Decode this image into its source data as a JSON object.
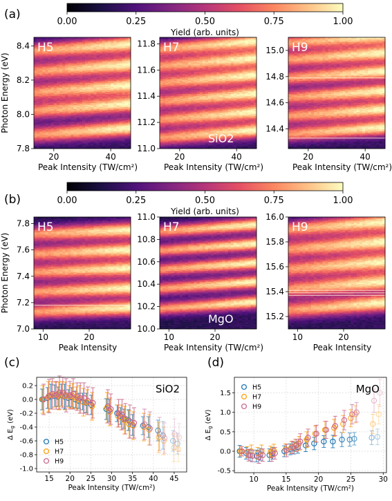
{
  "colors": {
    "magma": [
      "#000004",
      "#1c1044",
      "#4f127b",
      "#812581",
      "#b5367a",
      "#e55064",
      "#fb8761",
      "#fec287",
      "#fcfdbf"
    ],
    "H5": "#1f77b4",
    "H7": "#ff9f0e",
    "H9": "#c9688e",
    "grid": "#d9d9d9",
    "axis": "#111111"
  },
  "panels": {
    "a_label": "(a)",
    "b_label": "(b)",
    "c_label": "(c)",
    "d_label": "(d)"
  },
  "chart_data": [
    {
      "id": "a-colorbar",
      "type": "heatmap",
      "ticks": [
        "0.00",
        "0.25",
        "0.50",
        "0.75",
        "1.00"
      ],
      "label": "Yield (arb. units)",
      "range": [
        0,
        1
      ]
    },
    {
      "id": "a-H5",
      "type": "heatmap",
      "harmonic": "H5",
      "material_label": "",
      "xlim": [
        13,
        47
      ],
      "ylim": [
        7.8,
        8.45
      ],
      "xticks": [
        "20",
        "40"
      ],
      "xtick_values": [
        20,
        40
      ],
      "yticks": [
        "7.8",
        "8.0",
        "8.2",
        "8.4"
      ],
      "ytick_values": [
        7.8,
        8.0,
        8.2,
        8.4
      ],
      "xlabel": "Peak Intensity (TW/cm²)",
      "ylabel": "Photon Energy (eV)",
      "band_centers": [
        7.88,
        8.02,
        8.13,
        8.25,
        8.37
      ],
      "band_width": 0.05,
      "shift_total": 0.04
    },
    {
      "id": "a-H7",
      "type": "heatmap",
      "harmonic": "H7",
      "material_label": "SiO2",
      "xlim": [
        13,
        47
      ],
      "ylim": [
        11.0,
        11.85
      ],
      "xticks": [
        "20",
        "40"
      ],
      "xtick_values": [
        20,
        40
      ],
      "yticks": [
        "11.0",
        "11.2",
        "11.4",
        "11.6",
        "11.8"
      ],
      "ytick_values": [
        11.0,
        11.2,
        11.4,
        11.6,
        11.8
      ],
      "xlabel": "Peak Intensity (TW/cm²)",
      "ylabel": "",
      "band_centers": [
        11.08,
        11.22,
        11.36,
        11.5,
        11.63,
        11.76
      ],
      "band_width": 0.06,
      "shift_total": 0.06
    },
    {
      "id": "a-H9",
      "type": "heatmap",
      "harmonic": "H9",
      "material_label": "",
      "xlim": [
        13,
        47
      ],
      "ylim": [
        14.25,
        15.1
      ],
      "xticks": [
        "20",
        "40"
      ],
      "xtick_values": [
        20,
        40
      ],
      "yticks": [
        "14.4",
        "14.6",
        "14.8",
        "15.0"
      ],
      "ytick_values": [
        14.4,
        14.6,
        14.8,
        15.0
      ],
      "xlabel": "Peak Intensity (TW/cm²)",
      "ylabel": "",
      "band_centers": [
        14.36,
        14.5,
        14.64,
        14.79,
        14.93,
        15.06
      ],
      "band_width": 0.06,
      "shift_total": 0.05
    },
    {
      "id": "b-colorbar",
      "type": "heatmap",
      "ticks": [
        "0.00",
        "0.25",
        "0.50",
        "0.75",
        "1.00"
      ],
      "label": "Yield (arb. units)",
      "range": [
        0,
        1
      ]
    },
    {
      "id": "b-H5",
      "type": "heatmap",
      "harmonic": "H5",
      "material_label": "",
      "xlim": [
        8,
        29
      ],
      "ylim": [
        7.0,
        7.85
      ],
      "xticks": [
        "10",
        "20"
      ],
      "xtick_values": [
        10,
        20
      ],
      "yticks": [
        "7.0",
        "7.2",
        "7.4",
        "7.6",
        "7.8"
      ],
      "ytick_values": [
        7.0,
        7.2,
        7.4,
        7.6,
        7.8
      ],
      "xlabel": "Peak Intensity",
      "ylabel": "Photon Energy (eV)",
      "band_centers": [
        7.13,
        7.28,
        7.43,
        7.57,
        7.72
      ],
      "band_width": 0.06,
      "shift_total": 0.03
    },
    {
      "id": "b-H7",
      "type": "heatmap",
      "harmonic": "H7",
      "material_label": "MgO",
      "xlim": [
        8,
        29
      ],
      "ylim": [
        10.0,
        11.0
      ],
      "xticks": [
        "10",
        "20"
      ],
      "xtick_values": [
        10,
        20
      ],
      "yticks": [
        "10.0",
        "10.2",
        "10.4",
        "10.6",
        "10.8",
        "11.0"
      ],
      "ytick_values": [
        10.0,
        10.2,
        10.4,
        10.6,
        10.8,
        11.0
      ],
      "xlabel": "Peak Intensity (TW/cm²)",
      "ylabel": "",
      "band_centers": [
        10.18,
        10.36,
        10.53,
        10.7,
        10.87
      ],
      "band_width": 0.06,
      "shift_total": 0.06
    },
    {
      "id": "b-H9",
      "type": "heatmap",
      "harmonic": "H9",
      "material_label": "",
      "xlim": [
        8,
        29
      ],
      "ylim": [
        15.1,
        16.0
      ],
      "xticks": [
        "10",
        "20"
      ],
      "xtick_values": [
        10,
        20
      ],
      "yticks": [
        "15.2",
        "15.4",
        "15.6",
        "15.8",
        "16.0"
      ],
      "ytick_values": [
        15.2,
        15.4,
        15.6,
        15.8,
        16.0
      ],
      "xlabel": "Peak Intensity",
      "ylabel": "",
      "band_centers": [
        15.25,
        15.42,
        15.58,
        15.74,
        15.9
      ],
      "band_width": 0.07,
      "shift_total": 0.06
    },
    {
      "id": "c-scatter",
      "type": "scatter",
      "material_label": "SiO2",
      "xlim": [
        12,
        48
      ],
      "ylim": [
        -1.05,
        0.32
      ],
      "xticks": [
        "15",
        "20",
        "25",
        "30",
        "35",
        "40",
        "45"
      ],
      "xtick_values": [
        15,
        20,
        25,
        30,
        35,
        40,
        45
      ],
      "yticks": [
        "0.2",
        "0.0",
        "-0.2",
        "-0.4",
        "-0.6",
        "-0.8",
        "-1.0"
      ],
      "ytick_values": [
        0.2,
        0.0,
        -0.2,
        -0.4,
        -0.6,
        -0.8,
        -1.0
      ],
      "xlabel": "Peak Intensity (TW/cm²)",
      "ylabel": "Δ E",
      "ylabel_sub": "g",
      "ylabel_unit": " (eV)",
      "legend": [
        "H5",
        "H7",
        "H9"
      ],
      "series": [
        {
          "name": "H5",
          "x": [
            13.5,
            14.8,
            15.6,
            16.5,
            17.3,
            18.1,
            18.9,
            19.8,
            20.6,
            21.5,
            22.3,
            23.2,
            24.1,
            25.3,
            28.9,
            29.6,
            31.5,
            32.3,
            33.1,
            34.2,
            35.2,
            37.7,
            39.0,
            41.3,
            42.5,
            44.9,
            46.0
          ],
          "y": [
            0.0,
            0.02,
            0.04,
            0.05,
            0.04,
            0.06,
            0.04,
            0.02,
            0.03,
            0.0,
            -0.02,
            -0.03,
            -0.05,
            -0.08,
            -0.14,
            -0.16,
            -0.2,
            -0.24,
            -0.28,
            -0.3,
            -0.37,
            -0.38,
            -0.4,
            -0.45,
            -0.52,
            -0.6,
            -0.64
          ],
          "err": [
            0.15,
            0.15,
            0.18,
            0.16,
            0.14,
            0.16,
            0.18,
            0.12,
            0.14,
            0.12,
            0.11,
            0.12,
            0.14,
            0.14,
            0.15,
            0.16,
            0.12,
            0.12,
            0.14,
            0.15,
            0.15,
            0.13,
            0.15,
            0.15,
            0.2,
            0.15,
            0.15
          ],
          "alpha": [
            1,
            1,
            1,
            1,
            1,
            1,
            1,
            1,
            1,
            1,
            1,
            1,
            1,
            1,
            1,
            1,
            1,
            1,
            1,
            1,
            1,
            0.85,
            0.85,
            0.7,
            0.5,
            0.35,
            0.3
          ]
        },
        {
          "name": "H7",
          "x": [
            13.5,
            14.8,
            15.6,
            16.5,
            17.3,
            18.1,
            18.9,
            19.8,
            20.6,
            21.5,
            22.3,
            23.2,
            24.1,
            25.3,
            28.9,
            29.6,
            31.5,
            32.3,
            33.1,
            34.2,
            35.2,
            37.7,
            39.0,
            41.3,
            42.5,
            44.9,
            46.0
          ],
          "y": [
            0.0,
            0.04,
            0.06,
            0.07,
            0.05,
            0.08,
            0.05,
            0.04,
            0.05,
            0.02,
            0.0,
            -0.04,
            -0.04,
            -0.1,
            -0.12,
            -0.18,
            -0.24,
            -0.26,
            -0.3,
            -0.36,
            -0.38,
            -0.4,
            -0.44,
            -0.55,
            -0.6,
            -0.7,
            -0.72
          ],
          "err": [
            0.2,
            0.22,
            0.2,
            0.18,
            0.2,
            0.18,
            0.2,
            0.16,
            0.18,
            0.16,
            0.2,
            0.2,
            0.18,
            0.2,
            0.22,
            0.2,
            0.16,
            0.18,
            0.2,
            0.2,
            0.2,
            0.2,
            0.22,
            0.22,
            0.2,
            0.2,
            0.18
          ],
          "alpha": [
            1,
            1,
            1,
            1,
            1,
            1,
            1,
            1,
            1,
            1,
            1,
            1,
            1,
            1,
            1,
            1,
            1,
            1,
            1,
            1,
            1,
            0.85,
            0.8,
            0.65,
            0.5,
            0.35,
            0.3
          ]
        },
        {
          "name": "H9",
          "x": [
            13.5,
            14.8,
            15.6,
            16.5,
            17.3,
            18.1,
            18.9,
            19.8,
            20.6,
            21.5,
            22.3,
            23.2,
            24.1,
            25.3,
            28.9,
            29.6,
            31.5,
            32.3,
            33.1,
            34.2,
            35.2,
            37.7,
            39.0,
            41.3,
            42.5,
            44.9,
            46.0
          ],
          "y": [
            0.0,
            0.05,
            0.08,
            0.06,
            0.1,
            0.1,
            0.06,
            0.06,
            0.08,
            0.04,
            0.02,
            0.02,
            -0.02,
            -0.05,
            -0.1,
            -0.14,
            -0.2,
            -0.22,
            -0.28,
            -0.32,
            -0.34,
            -0.36,
            -0.42,
            -0.5,
            -0.56,
            -0.5,
            -0.55
          ],
          "err": [
            0.22,
            0.24,
            0.22,
            0.2,
            0.24,
            0.22,
            0.24,
            0.2,
            0.22,
            0.2,
            0.22,
            0.22,
            0.2,
            0.22,
            0.24,
            0.22,
            0.2,
            0.22,
            0.22,
            0.24,
            0.22,
            0.22,
            0.24,
            0.24,
            0.22,
            0.22,
            0.2
          ],
          "alpha": [
            1,
            1,
            1,
            1,
            1,
            1,
            1,
            1,
            1,
            1,
            1,
            1,
            1,
            1,
            1,
            1,
            1,
            1,
            1,
            1,
            1,
            0.8,
            0.75,
            0.6,
            0.45,
            0.3,
            0.25
          ]
        }
      ],
      "grid": true,
      "legend_position": "bottom-left"
    },
    {
      "id": "d-scatter",
      "type": "scatter",
      "material_label": "MgO",
      "xlim": [
        7,
        30.5
      ],
      "ylim": [
        -0.55,
        1.9
      ],
      "xticks": [
        "10",
        "15",
        "20",
        "25",
        "30"
      ],
      "xtick_values": [
        10,
        15,
        20,
        25,
        30
      ],
      "yticks": [
        "1.5",
        "1.0",
        "0.5",
        "0.0",
        "-0.5"
      ],
      "ytick_values": [
        1.5,
        1.0,
        0.5,
        0.0,
        -0.5
      ],
      "xlabel": "Peak Intensity (TW/cm²)",
      "ylabel": "Δ E",
      "ylabel_sub": "g",
      "ylabel_unit": " (eV)",
      "legend": [
        "H5",
        "H7",
        "H9"
      ],
      "series": [
        {
          "name": "H5",
          "x": [
            8.0,
            9.0,
            9.6,
            10.6,
            11.2,
            12.6,
            13.1,
            14.9,
            15.8,
            16.4,
            17.0,
            18.2,
            19.5,
            21.0,
            22.4,
            23.8,
            25.0,
            25.7,
            28.4,
            29.3
          ],
          "y": [
            0.0,
            -0.05,
            -0.1,
            -0.12,
            -0.08,
            -0.1,
            -0.05,
            0.0,
            0.05,
            0.08,
            0.1,
            0.15,
            0.2,
            0.25,
            0.25,
            0.3,
            0.3,
            0.32,
            0.35,
            0.37
          ],
          "err": [
            0.15,
            0.15,
            0.15,
            0.15,
            0.15,
            0.16,
            0.15,
            0.14,
            0.14,
            0.15,
            0.15,
            0.16,
            0.16,
            0.15,
            0.16,
            0.18,
            0.17,
            0.16,
            0.18,
            0.2
          ],
          "alpha": [
            1,
            1,
            1,
            1,
            1,
            1,
            1,
            1,
            1,
            1,
            1,
            1,
            1,
            1,
            1,
            0.9,
            0.8,
            0.7,
            0.5,
            0.35
          ]
        },
        {
          "name": "H7",
          "x": [
            8.0,
            9.0,
            9.6,
            10.6,
            11.2,
            12.6,
            13.1,
            14.9,
            15.8,
            16.4,
            17.0,
            18.2,
            19.5,
            21.0,
            22.4,
            23.8,
            25.0,
            25.7,
            28.4,
            29.3
          ],
          "y": [
            0.0,
            -0.02,
            0.0,
            -0.05,
            0.0,
            -0.02,
            0.02,
            0.05,
            0.1,
            0.15,
            0.2,
            0.3,
            0.45,
            0.55,
            0.6,
            0.7,
            0.85,
            0.95,
            0.7,
            0.95
          ],
          "err": [
            0.12,
            0.14,
            0.16,
            0.15,
            0.16,
            0.15,
            0.16,
            0.14,
            0.15,
            0.16,
            0.18,
            0.2,
            0.2,
            0.22,
            0.22,
            0.22,
            0.22,
            0.22,
            0.25,
            0.25
          ],
          "alpha": [
            1,
            1,
            1,
            1,
            1,
            1,
            1,
            1,
            1,
            1,
            1,
            1,
            1,
            1,
            1,
            0.9,
            0.8,
            0.7,
            0.5,
            0.35
          ]
        },
        {
          "name": "H9",
          "x": [
            8.0,
            9.0,
            9.6,
            10.6,
            11.2,
            12.6,
            13.1,
            14.9,
            15.8,
            16.4,
            17.0,
            18.2,
            19.5,
            21.0,
            22.4,
            23.8,
            25.0,
            25.7,
            28.4,
            29.3
          ],
          "y": [
            0.0,
            -0.1,
            -0.12,
            -0.15,
            -0.1,
            -0.1,
            -0.05,
            0.02,
            0.1,
            0.15,
            0.25,
            0.35,
            0.45,
            0.55,
            0.65,
            0.8,
            0.95,
            1.0,
            1.3,
            1.5
          ],
          "err": [
            0.12,
            0.15,
            0.15,
            0.16,
            0.16,
            0.16,
            0.15,
            0.16,
            0.16,
            0.16,
            0.2,
            0.22,
            0.22,
            0.22,
            0.25,
            0.25,
            0.25,
            0.25,
            0.3,
            0.35
          ],
          "alpha": [
            1,
            1,
            1,
            1,
            1,
            1,
            1,
            1,
            1,
            1,
            1,
            1,
            1,
            1,
            1,
            0.9,
            0.8,
            0.65,
            0.45,
            0.3
          ]
        }
      ],
      "grid": true,
      "legend_position": "top-left"
    }
  ]
}
